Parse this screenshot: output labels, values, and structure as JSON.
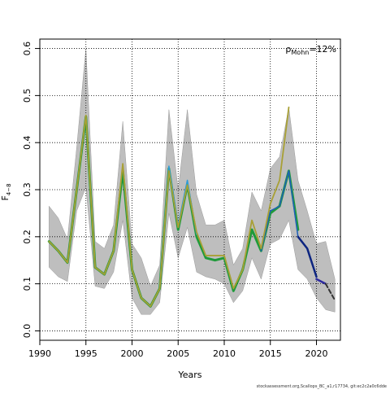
{
  "chart_data": {
    "type": "line",
    "xlabel": "Years",
    "ylabel": "F",
    "ylabel_sub": "4−8",
    "xlim": [
      1990,
      2022.6
    ],
    "ylim": [
      -0.02,
      0.62
    ],
    "x_ticks": [
      1990,
      1995,
      2000,
      2005,
      2010,
      2015,
      2020
    ],
    "y_ticks": [
      0.0,
      0.1,
      0.2,
      0.3,
      0.4,
      0.5,
      0.6
    ],
    "x_tick_labels": [
      "1990",
      "1995",
      "2000",
      "2005",
      "2010",
      "2015",
      "2020"
    ],
    "y_tick_labels": [
      "0.0",
      "0.1",
      "0.2",
      "0.3",
      "0.4",
      "0.5",
      "0.6"
    ],
    "grid": "dotted",
    "annotation": {
      "symbol": "ρ",
      "subscript": "Mohn",
      "text": "=12%"
    },
    "band_color": "#bebebe",
    "band": {
      "years": [
        1991,
        1992,
        1993,
        1994,
        1995,
        1996,
        1997,
        1998,
        1999,
        2000,
        2001,
        2002,
        2003,
        2004,
        2005,
        2006,
        2007,
        2008,
        2009,
        2010,
        2011,
        2012,
        2013,
        2014,
        2015,
        2016,
        2017,
        2018,
        2019,
        2020,
        2021,
        2022
      ],
      "upper": [
        0.265,
        0.24,
        0.195,
        0.39,
        0.6,
        0.19,
        0.175,
        0.225,
        0.445,
        0.185,
        0.155,
        0.095,
        0.14,
        0.47,
        0.3,
        0.47,
        0.29,
        0.225,
        0.225,
        0.235,
        0.14,
        0.175,
        0.295,
        0.255,
        0.345,
        0.37,
        0.475,
        0.32,
        0.255,
        0.185,
        0.19,
        0.11
      ],
      "lower": [
        0.135,
        0.115,
        0.105,
        0.255,
        0.305,
        0.095,
        0.09,
        0.125,
        0.235,
        0.07,
        0.035,
        0.035,
        0.06,
        0.25,
        0.155,
        0.22,
        0.125,
        0.115,
        0.11,
        0.1,
        0.06,
        0.085,
        0.155,
        0.11,
        0.185,
        0.195,
        0.235,
        0.13,
        0.11,
        0.07,
        0.045,
        0.04
      ]
    },
    "series": [
      {
        "color": "#1f9a3a",
        "width": 3,
        "x": [
          1991,
          1992,
          1993,
          1994,
          1995,
          1996,
          1997,
          1998,
          1999,
          2000,
          2001,
          2002,
          2003,
          2004,
          2005,
          2006,
          2007,
          2008,
          2009,
          2010,
          2011,
          2012,
          2013,
          2014,
          2015,
          2016,
          2017,
          2018
        ],
        "y": [
          0.19,
          0.17,
          0.145,
          0.3,
          0.455,
          0.135,
          0.12,
          0.17,
          0.34,
          0.13,
          0.07,
          0.052,
          0.09,
          0.345,
          0.215,
          0.31,
          0.2,
          0.155,
          0.15,
          0.155,
          0.085,
          0.13,
          0.215,
          0.17,
          0.25,
          0.265,
          0.34,
          0.215
        ]
      },
      {
        "color": "#2b9bd6",
        "width": 1.5,
        "x": [
          2003,
          2004,
          2005,
          2006,
          2007
        ],
        "y": [
          0.095,
          0.35,
          0.225,
          0.32,
          0.205
        ]
      },
      {
        "color": "#1d5fb8",
        "width": 1.5,
        "x": [
          2014,
          2015,
          2016,
          2017,
          2018,
          2019,
          2020
        ],
        "y": [
          0.17,
          0.255,
          0.265,
          0.34,
          0.2,
          0.175,
          0.115
        ]
      },
      {
        "color": "#0d2580",
        "width": 2.5,
        "x": [
          2018,
          2019,
          2020
        ],
        "y": [
          0.2,
          0.175,
          0.115
        ]
      },
      {
        "color": "#2e2ba0",
        "width": 2.5,
        "x": [
          2020,
          2021
        ],
        "y": [
          0.11,
          0.1
        ]
      },
      {
        "color": "#333333",
        "width": 2,
        "dashed": true,
        "x": [
          2021,
          2022
        ],
        "y": [
          0.1,
          0.065
        ]
      },
      {
        "color": "#a8a035",
        "width": 1.8,
        "x": [
          1991,
          1992,
          1993,
          1994,
          1995,
          1996,
          1997,
          1998,
          1999,
          2000,
          2001,
          2002,
          2003,
          2004,
          2005,
          2006,
          2007,
          2008,
          2009,
          2010,
          2011,
          2012,
          2013,
          2014,
          2015,
          2016,
          2017
        ],
        "y": [
          0.19,
          0.17,
          0.145,
          0.3,
          0.458,
          0.135,
          0.12,
          0.17,
          0.355,
          0.13,
          0.07,
          0.052,
          0.09,
          0.34,
          0.22,
          0.31,
          0.21,
          0.16,
          0.16,
          0.16,
          0.09,
          0.13,
          0.235,
          0.175,
          0.27,
          0.32,
          0.475
        ]
      }
    ]
  },
  "footer": "stockassessment.org,Scallops_BC_a1,r17734, git:ec2c2a0c6dde"
}
